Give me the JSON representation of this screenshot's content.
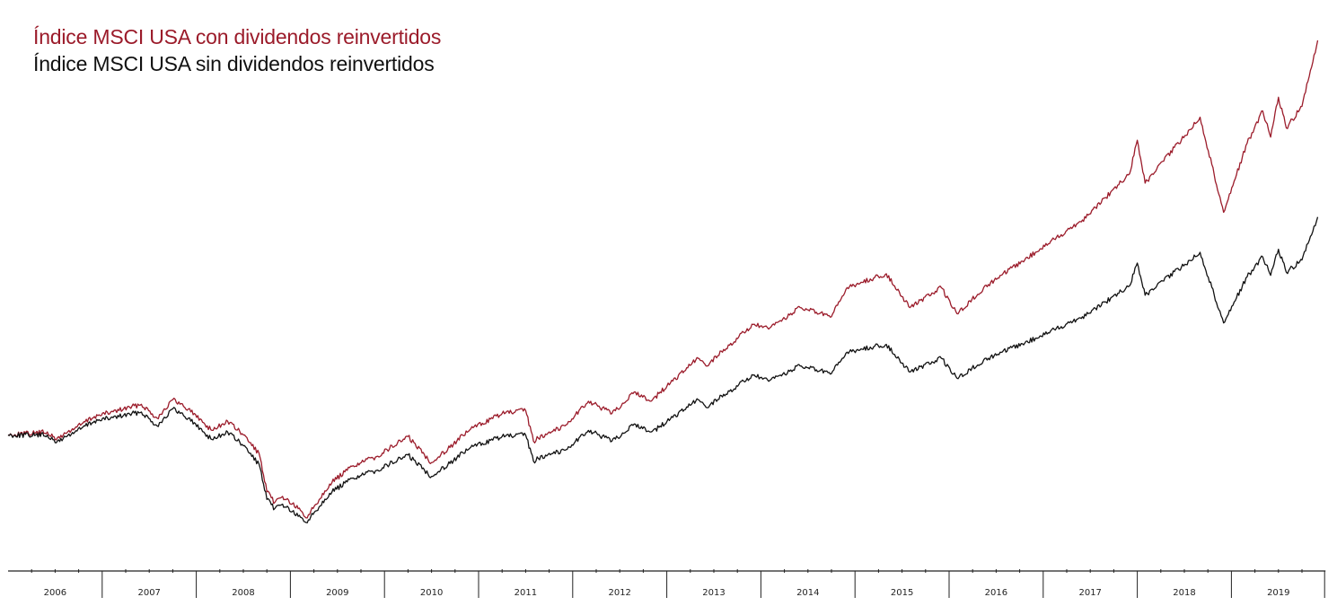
{
  "legend": {
    "with_dividends": "Índice MSCI USA con dividendos reinvertidos",
    "without_dividends": "Índice MSCI USA sin dividendos reinvertidos"
  },
  "colors": {
    "with_dividends": "#9B1B2A",
    "without_dividends": "#111111",
    "axis": "#222222"
  },
  "chart_data": {
    "type": "line",
    "title": "",
    "xlabel": "",
    "ylabel": "",
    "x_axis_years": [
      "2006",
      "2007",
      "2008",
      "2009",
      "2010",
      "2011",
      "2012",
      "2013",
      "2014",
      "2015",
      "2016",
      "2017",
      "2018",
      "2019"
    ],
    "y_axis_shown": false,
    "grid": false,
    "legend_position": "top-left",
    "series": [
      {
        "name": "Índice MSCI USA con dividendos reinvertidos",
        "color": "#9B1B2A",
        "points": [
          [
            "2006-01",
            100
          ],
          [
            "2006-06",
            102
          ],
          [
            "2006-07",
            97
          ],
          [
            "2006-12",
            112
          ],
          [
            "2007-06",
            120
          ],
          [
            "2007-08",
            111
          ],
          [
            "2007-10",
            123
          ],
          [
            "2007-12",
            117
          ],
          [
            "2008-03",
            103
          ],
          [
            "2008-05",
            109
          ],
          [
            "2008-07",
            100
          ],
          [
            "2008-09",
            88
          ],
          [
            "2008-10",
            63
          ],
          [
            "2008-11",
            56
          ],
          [
            "2008-12",
            60
          ],
          [
            "2009-02",
            52
          ],
          [
            "2009-03",
            46
          ],
          [
            "2009-06",
            68
          ],
          [
            "2009-09",
            80
          ],
          [
            "2009-12",
            86
          ],
          [
            "2010-04",
            99
          ],
          [
            "2010-07",
            82
          ],
          [
            "2010-12",
            104
          ],
          [
            "2011-04",
            114
          ],
          [
            "2011-07",
            116
          ],
          [
            "2011-08",
            96
          ],
          [
            "2011-10",
            102
          ],
          [
            "2011-12",
            106
          ],
          [
            "2012-03",
            122
          ],
          [
            "2012-06",
            114
          ],
          [
            "2012-09",
            128
          ],
          [
            "2012-11",
            122
          ],
          [
            "2012-12",
            127
          ],
          [
            "2013-05",
            150
          ],
          [
            "2013-06",
            145
          ],
          [
            "2013-12",
            172
          ],
          [
            "2014-02",
            169
          ],
          [
            "2014-06",
            183
          ],
          [
            "2014-10",
            177
          ],
          [
            "2014-12",
            196
          ],
          [
            "2015-05",
            205
          ],
          [
            "2015-08",
            183
          ],
          [
            "2015-12",
            196
          ],
          [
            "2016-02",
            179
          ],
          [
            "2016-06",
            198
          ],
          [
            "2016-12",
            219
          ],
          [
            "2017-06",
            240
          ],
          [
            "2017-12",
            270
          ],
          [
            "2018-01",
            292
          ],
          [
            "2018-02",
            264
          ],
          [
            "2018-09",
            307
          ],
          [
            "2018-12",
            245
          ],
          [
            "2019-03",
            290
          ],
          [
            "2019-05",
            311
          ],
          [
            "2019-06",
            294
          ],
          [
            "2019-07",
            320
          ],
          [
            "2019-08",
            300
          ],
          [
            "2019-10",
            314
          ],
          [
            "2019-12",
            357
          ]
        ]
      },
      {
        "name": "Índice MSCI USA sin dividendos reinvertidos",
        "color": "#111111",
        "points": [
          [
            "2006-01",
            100
          ],
          [
            "2006-06",
            100
          ],
          [
            "2006-07",
            95
          ],
          [
            "2006-12",
            109
          ],
          [
            "2007-06",
            115
          ],
          [
            "2007-08",
            106
          ],
          [
            "2007-10",
            117
          ],
          [
            "2007-12",
            111
          ],
          [
            "2008-03",
            97
          ],
          [
            "2008-05",
            102
          ],
          [
            "2008-07",
            93
          ],
          [
            "2008-09",
            81
          ],
          [
            "2008-10",
            58
          ],
          [
            "2008-11",
            52
          ],
          [
            "2008-12",
            55
          ],
          [
            "2009-02",
            47
          ],
          [
            "2009-03",
            43
          ],
          [
            "2009-06",
            62
          ],
          [
            "2009-09",
            72
          ],
          [
            "2009-12",
            77
          ],
          [
            "2010-04",
            87
          ],
          [
            "2010-07",
            73
          ],
          [
            "2010-12",
            92
          ],
          [
            "2011-04",
            99
          ],
          [
            "2011-07",
            100
          ],
          [
            "2011-08",
            83
          ],
          [
            "2011-10",
            88
          ],
          [
            "2011-12",
            90
          ],
          [
            "2012-03",
            103
          ],
          [
            "2012-06",
            96
          ],
          [
            "2012-09",
            107
          ],
          [
            "2012-11",
            102
          ],
          [
            "2012-12",
            105
          ],
          [
            "2013-05",
            123
          ],
          [
            "2013-06",
            118
          ],
          [
            "2013-12",
            139
          ],
          [
            "2014-02",
            135
          ],
          [
            "2014-06",
            145
          ],
          [
            "2014-10",
            140
          ],
          [
            "2014-12",
            154
          ],
          [
            "2015-05",
            159
          ],
          [
            "2015-08",
            141
          ],
          [
            "2015-12",
            150
          ],
          [
            "2016-02",
            137
          ],
          [
            "2016-06",
            150
          ],
          [
            "2016-12",
            163
          ],
          [
            "2017-06",
            177
          ],
          [
            "2017-12",
            197
          ],
          [
            "2018-01",
            212
          ],
          [
            "2018-02",
            191
          ],
          [
            "2018-09",
            219
          ],
          [
            "2018-12",
            173
          ],
          [
            "2019-03",
            203
          ],
          [
            "2019-05",
            216
          ],
          [
            "2019-06",
            204
          ],
          [
            "2019-07",
            221
          ],
          [
            "2019-08",
            206
          ],
          [
            "2019-10",
            214
          ],
          [
            "2019-12",
            242
          ]
        ]
      }
    ]
  }
}
